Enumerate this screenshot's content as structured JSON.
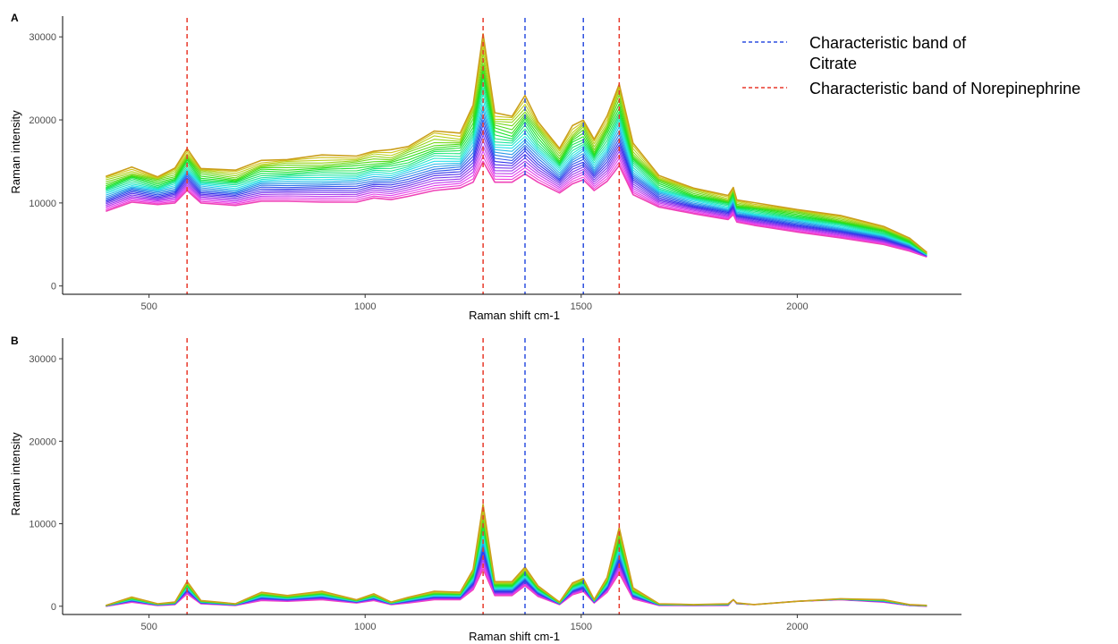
{
  "chart_data": [
    {
      "panel": "A",
      "type": "line",
      "xlabel": "Raman shift cm-1",
      "ylabel": "Raman intensity",
      "xlim": [
        300,
        2380
      ],
      "ylim": [
        -1000,
        32500
      ],
      "xticks": [
        500,
        1000,
        1500,
        2000
      ],
      "yticks": [
        0,
        10000,
        20000,
        30000
      ],
      "grid": false,
      "legend_position": "top-right",
      "vlines": [
        {
          "x": 588,
          "color": "#e8392b",
          "band": "norepinephrine"
        },
        {
          "x": 1273,
          "color": "#e8392b",
          "band": "norepinephrine"
        },
        {
          "x": 1370,
          "color": "#2d4fe0",
          "band": "citrate"
        },
        {
          "x": 1505,
          "color": "#2d4fe0",
          "band": "citrate"
        },
        {
          "x": 1588,
          "color": "#e8392b",
          "band": "norepinephrine"
        }
      ],
      "series_count": 25,
      "x": [
        400,
        460,
        520,
        560,
        588,
        620,
        700,
        760,
        820,
        900,
        980,
        1020,
        1060,
        1100,
        1160,
        1220,
        1250,
        1273,
        1300,
        1340,
        1370,
        1400,
        1450,
        1480,
        1505,
        1530,
        1560,
        1588,
        1620,
        1680,
        1760,
        1840,
        1852,
        1860,
        1900,
        2000,
        2100,
        2200,
        2260,
        2300
      ],
      "top_curve": [
        13200,
        14200,
        13300,
        14100,
        16500,
        14300,
        13800,
        15200,
        15300,
        15600,
        15800,
        16200,
        16300,
        17000,
        18500,
        18400,
        22000,
        30000,
        21000,
        20500,
        22700,
        20000,
        16500,
        19200,
        20200,
        17500,
        20500,
        24500,
        17000,
        13400,
        11800,
        10800,
        12000,
        10300,
        10000,
        9300,
        8400,
        7200,
        5800,
        4000
      ],
      "bottom_curve": [
        9000,
        10100,
        9800,
        10000,
        11500,
        10000,
        9700,
        10200,
        10200,
        10100,
        10100,
        10600,
        10400,
        10800,
        11500,
        11800,
        12500,
        15000,
        12500,
        12500,
        13500,
        12500,
        11200,
        12300,
        12800,
        11500,
        12600,
        14500,
        11000,
        9500,
        8700,
        8000,
        8600,
        7700,
        7300,
        6500,
        5800,
        5000,
        4200,
        3500
      ]
    },
    {
      "panel": "B",
      "type": "line",
      "xlabel": "Raman shift cm-1",
      "ylabel": "Raman intensity",
      "xlim": [
        300,
        2380
      ],
      "ylim": [
        -1000,
        32500
      ],
      "xticks": [
        500,
        1000,
        1500,
        2000
      ],
      "yticks": [
        0,
        10000,
        20000,
        30000
      ],
      "grid": false,
      "vlines": [
        {
          "x": 588,
          "color": "#e8392b",
          "band": "norepinephrine"
        },
        {
          "x": 1273,
          "color": "#e8392b",
          "band": "norepinephrine"
        },
        {
          "x": 1370,
          "color": "#2d4fe0",
          "band": "citrate"
        },
        {
          "x": 1505,
          "color": "#2d4fe0",
          "band": "citrate"
        },
        {
          "x": 1588,
          "color": "#e8392b",
          "band": "norepinephrine"
        }
      ],
      "series_count": 25,
      "x": [
        400,
        460,
        520,
        560,
        588,
        620,
        700,
        760,
        820,
        900,
        980,
        1020,
        1060,
        1100,
        1160,
        1220,
        1250,
        1273,
        1300,
        1340,
        1370,
        1400,
        1450,
        1480,
        1505,
        1530,
        1560,
        1588,
        1620,
        1680,
        1760,
        1840,
        1852,
        1860,
        1900,
        2000,
        2100,
        2200,
        2260,
        2300
      ],
      "top_curve": [
        100,
        1100,
        300,
        500,
        3000,
        700,
        300,
        1700,
        1300,
        1800,
        800,
        1500,
        500,
        1100,
        1800,
        1700,
        4500,
        12200,
        3000,
        3000,
        4700,
        2500,
        500,
        2800,
        3400,
        800,
        3500,
        9600,
        2200,
        300,
        200,
        300,
        800,
        400,
        200,
        600,
        900,
        800,
        200,
        100
      ],
      "bottom_curve": [
        0,
        500,
        100,
        200,
        1500,
        300,
        100,
        700,
        600,
        800,
        400,
        700,
        200,
        400,
        800,
        800,
        2000,
        4500,
        1300,
        1300,
        2500,
        1200,
        200,
        1400,
        1800,
        400,
        1700,
        4000,
        900,
        100,
        100,
        100,
        800,
        300,
        200,
        600,
        800,
        500,
        100,
        0
      ]
    }
  ],
  "panel_labels": {
    "a": "A",
    "b": "B"
  },
  "axis_labels": {
    "x_a": "Raman shift cm-1",
    "y_a": "Raman intensity",
    "x_b": "Raman shift cm-1",
    "y_b": "Raman intensity"
  },
  "legend": {
    "position": "top-right",
    "items": [
      {
        "label_line1": "Characteristic band of",
        "label_line2": "Citrate",
        "color": "#2d4fe0"
      },
      {
        "label_line1": "Characteristic band of Norepinephrine",
        "label_line2": "",
        "color": "#e8392b"
      }
    ]
  },
  "colors": {
    "gradient_top": "#c49a1a",
    "gradient_bottom": "#f26bc6",
    "citrate": "#2d4fe0",
    "norepinephrine": "#e8392b"
  }
}
